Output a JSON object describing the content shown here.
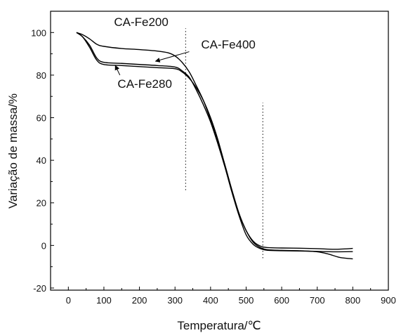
{
  "chart_data": {
    "type": "line",
    "title": "",
    "xlabel": "Temperatura/℃",
    "ylabel": "Variação de massa/%",
    "xlim": [
      -50,
      900
    ],
    "ylim": [
      -21,
      110
    ],
    "x_ticks": [
      0,
      100,
      200,
      300,
      400,
      500,
      600,
      700,
      800,
      900
    ],
    "y_ticks": [
      -20,
      0,
      20,
      40,
      60,
      80,
      100
    ],
    "x_tick_labels": [
      "0",
      "100",
      "200",
      "300",
      "400",
      "500",
      "600",
      "700",
      "800",
      "900"
    ],
    "y_tick_labels": [
      "-20",
      "0",
      "20",
      "40",
      "60",
      "80",
      "100"
    ],
    "grid": false,
    "legend": "none",
    "series": [
      {
        "name": "CA-Fe200",
        "color": "#000000",
        "x": [
          23,
          40,
          60,
          80,
          100,
          150,
          200,
          250,
          280,
          300,
          320,
          340,
          360,
          380,
          400,
          420,
          440,
          460,
          480,
          500,
          520,
          540,
          560,
          600,
          650,
          700,
          750,
          800
        ],
        "y": [
          100,
          99,
          97,
          94.5,
          93.5,
          92.5,
          92,
          91.3,
          90.5,
          89,
          86,
          81.5,
          75,
          68,
          59,
          49,
          38,
          26,
          15,
          7,
          2,
          -0.3,
          -1,
          -1.2,
          -1.3,
          -1.5,
          -1.8,
          -1.4
        ]
      },
      {
        "name": "CA-Fe280",
        "color": "#000000",
        "x": [
          23,
          40,
          60,
          80,
          100,
          150,
          200,
          250,
          300,
          320,
          340,
          360,
          380,
          400,
          420,
          440,
          460,
          480,
          500,
          520,
          540,
          560,
          600,
          650,
          700,
          730,
          760,
          780,
          800
        ],
        "y": [
          100,
          98,
          93,
          87,
          85,
          84.5,
          84,
          83.5,
          83,
          81.5,
          78.5,
          74,
          68,
          60,
          50,
          38,
          26,
          15,
          7,
          1.5,
          -1,
          -2,
          -2.3,
          -2.5,
          -3,
          -4,
          -5.5,
          -6,
          -6.3
        ]
      },
      {
        "name": "CA-Fe400",
        "color": "#000000",
        "x": [
          23,
          40,
          60,
          80,
          100,
          150,
          200,
          250,
          300,
          320,
          340,
          360,
          380,
          400,
          420,
          440,
          460,
          480,
          500,
          520,
          540,
          560,
          600,
          650,
          700,
          750,
          800
        ],
        "y": [
          100,
          98,
          94,
          88,
          86,
          85.5,
          85,
          84.5,
          83.8,
          82,
          79,
          73,
          66,
          58,
          48,
          37,
          25,
          14,
          5,
          0.5,
          -1.5,
          -2.3,
          -2.5,
          -2.6,
          -2.8,
          -3,
          -2.9
        ]
      }
    ],
    "annotations": [
      {
        "text": "CA-Fe200",
        "x": 205,
        "y": 103,
        "arrow_to": null
      },
      {
        "text": "CA-Fe400",
        "x": 450,
        "y": 92.5,
        "arrow_from": [
          340,
          91
        ],
        "arrow_to": [
          245,
          86.5
        ]
      },
      {
        "text": "CA-Fe280",
        "x": 215,
        "y": 74,
        "arrow_from": [
          145,
          80
        ],
        "arrow_to": [
          132,
          84.5
        ]
      }
    ],
    "reference_lines": [
      {
        "orientation": "vertical",
        "x": 330,
        "y_range": [
          26,
          102
        ],
        "style": "dotted"
      },
      {
        "orientation": "vertical",
        "x": 547,
        "y_range": [
          -6,
          67
        ],
        "style": "dotted"
      }
    ]
  }
}
